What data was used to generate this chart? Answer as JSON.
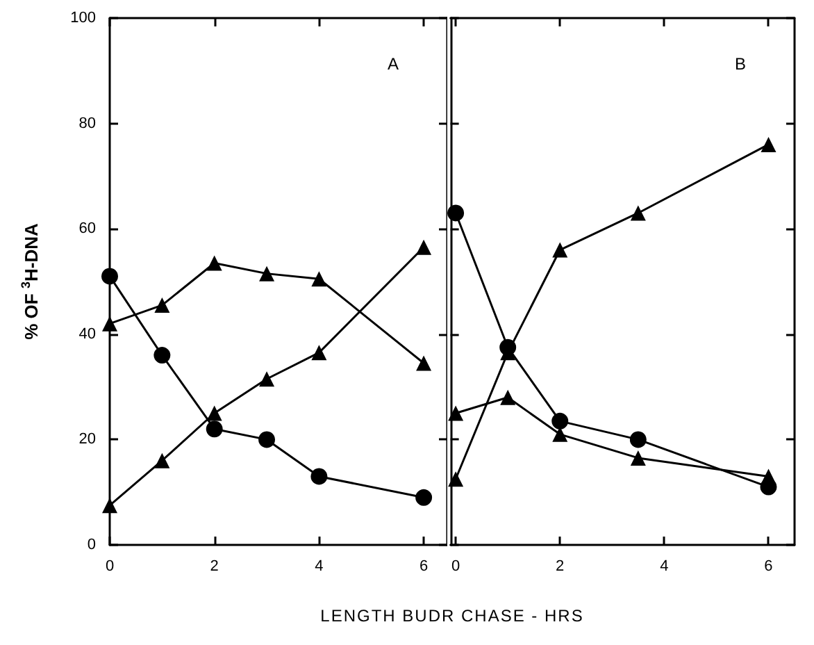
{
  "chart_data": [
    {
      "type": "line",
      "ylabel": "% OF $^{3}$H-DNA",
      "xlabel": "LENGTH BUDR CHASE - HRS",
      "annotations": [
        "A"
      ],
      "x": [
        0,
        1,
        2,
        3,
        4,
        6
      ],
      "xlim": [
        0,
        6.45
      ],
      "xticks": [
        0,
        2,
        4,
        6
      ],
      "ylim": [
        0,
        100
      ],
      "yticks": [
        0,
        20,
        40,
        60,
        80,
        100
      ],
      "grid": false,
      "line_style": "solid",
      "series": [
        {
          "color": "#000000",
          "marker": "circle",
          "values": [
            51,
            36,
            22,
            20,
            13,
            9
          ]
        },
        {
          "color": "#000000",
          "marker": "triangle",
          "values": [
            7.5,
            16,
            25,
            31.5,
            36.5,
            56.5
          ]
        },
        {
          "color": "#000000",
          "marker": "triangle",
          "values": [
            42,
            45.5,
            53.5,
            51.5,
            50.5,
            34.5
          ]
        }
      ]
    },
    {
      "type": "line",
      "annotations": [
        "B"
      ],
      "x": [
        0,
        1,
        2,
        3.5,
        6
      ],
      "xlim": [
        -0.1,
        6.5
      ],
      "xticks": [
        0,
        2,
        4,
        6
      ],
      "ylim": [
        0,
        100
      ],
      "yticks": [
        0,
        20,
        40,
        60,
        80,
        100
      ],
      "tick_labels": "x",
      "grid": false,
      "line_style": "solid",
      "series": [
        {
          "color": "#000000",
          "marker": "circle",
          "values": [
            63,
            37.5,
            23.5,
            20,
            11
          ]
        },
        {
          "color": "#000000",
          "marker": "triangle",
          "values": [
            12.5,
            36.5,
            56,
            63,
            76
          ]
        },
        {
          "color": "#000000",
          "marker": "triangle",
          "values": [
            25,
            28,
            21,
            16.5,
            13
          ]
        }
      ]
    }
  ]
}
